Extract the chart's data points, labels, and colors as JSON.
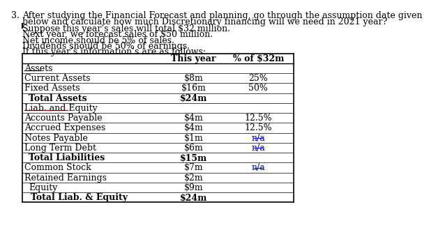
{
  "question_number": "3.",
  "question_text_line1": "After studying the Financial Forecast and planning, go through the assumption date given",
  "question_text_line2": "below and calculate how much Discretionary financing will we need in 2021 year?",
  "assumptions": [
    "Suppose this year’s sales will total $32 million.",
    "Next year, we forecast sales of $50 million.",
    "Net income should be 5% of sales.",
    "Dividends should be 50% of earnings.",
    "If this year’s information’s are as follows:"
  ],
  "col_headers": [
    "This year",
    "% of $32m"
  ],
  "rows": [
    {
      "label": "Assets",
      "this_year": "",
      "pct": "",
      "style": "underline",
      "indent": 0
    },
    {
      "label": "Current Assets",
      "this_year": "$8m",
      "pct": "25%",
      "style": "normal",
      "indent": 0
    },
    {
      "label": "Fixed Assets",
      "this_year": "$16m",
      "pct": "50%",
      "style": "normal",
      "indent": 0
    },
    {
      "label": "Total Assets",
      "this_year": "$24m",
      "pct": "",
      "style": "bold",
      "indent": 4
    },
    {
      "label": "Liab. and Equity",
      "this_year": "",
      "pct": "",
      "style": "underline_red",
      "indent": 0
    },
    {
      "label": "Accounts Payable",
      "this_year": "$4m",
      "pct": "12.5%",
      "style": "normal",
      "indent": 0
    },
    {
      "label": "Accrued Expenses",
      "this_year": "$4m",
      "pct": "12.5%",
      "style": "normal",
      "indent": 0
    },
    {
      "label": "Notes Payable",
      "this_year": "$1m",
      "pct": "n/a",
      "style": "normal",
      "indent": 0
    },
    {
      "label": "Long Term Debt",
      "this_year": "$6m",
      "pct": "n/a",
      "style": "normal",
      "indent": 0
    },
    {
      "label": "Total Liabilities",
      "this_year": "$15m",
      "pct": "",
      "style": "bold",
      "indent": 4
    },
    {
      "label": "Common Stock",
      "this_year": "$7m",
      "pct": "n/a",
      "style": "normal",
      "indent": 0
    },
    {
      "label": "Retained Earnings",
      "this_year": "$2m",
      "pct": "",
      "style": "normal",
      "indent": 0
    },
    {
      "label": "Equity",
      "this_year": "$9m",
      "pct": "",
      "style": "normal",
      "indent": 4
    },
    {
      "label": "Total Liab. & Equity",
      "this_year": "$24m",
      "pct": "",
      "style": "bold",
      "indent": 6
    }
  ],
  "na_color": "#0000cc",
  "underline_color_red": "#cc0000",
  "bg_color": "white",
  "font_size": 9,
  "title_font_size": 9
}
